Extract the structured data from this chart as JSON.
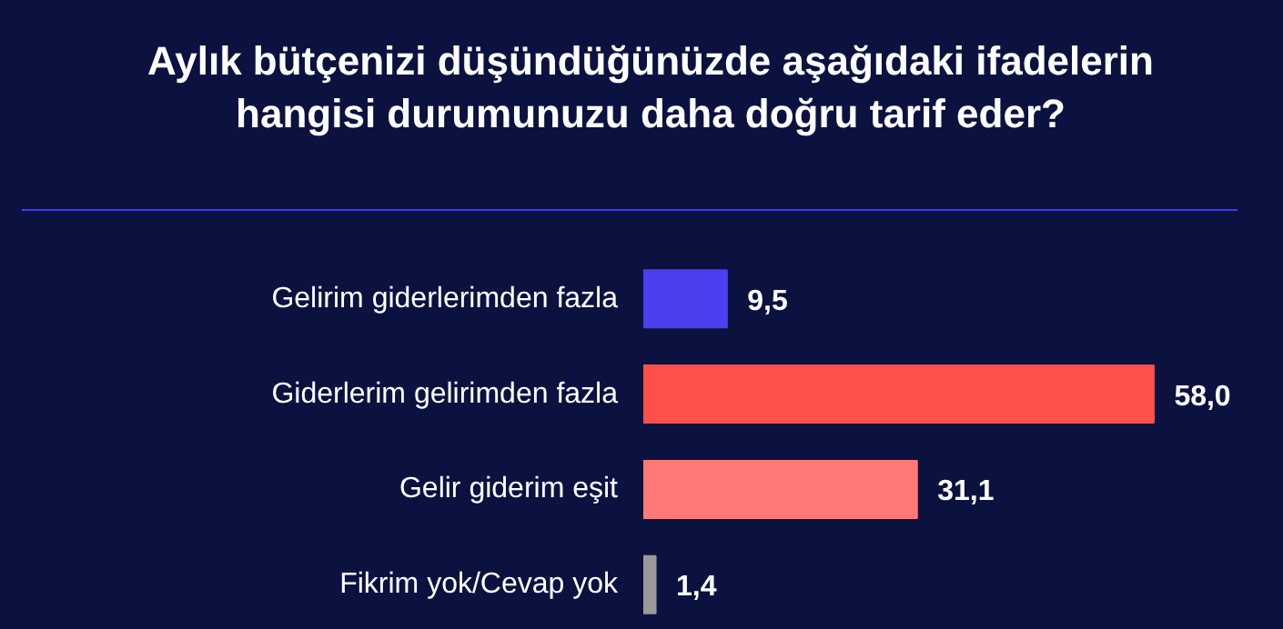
{
  "chart_data": {
    "type": "bar",
    "orientation": "horizontal",
    "title": "Aylık bütçenizi düşündüğünüzde aşağıdaki ifadelerin hangisi durumunuzu daha doğru tarif eder?",
    "categories": [
      "Gelirim giderlerimden fazla",
      "Giderlerim gelirimden fazla",
      "Gelir giderim eşit",
      "Fikrim yok/Cevap yok"
    ],
    "values": [
      9.5,
      58.0,
      31.1,
      1.4
    ],
    "colors": [
      "#4b3ff0",
      "#ff4f4a",
      "#ff7a76",
      "#9a9a9a"
    ],
    "value_labels": [
      "9,5",
      "58,0",
      "31,1",
      "1,4"
    ]
  }
}
